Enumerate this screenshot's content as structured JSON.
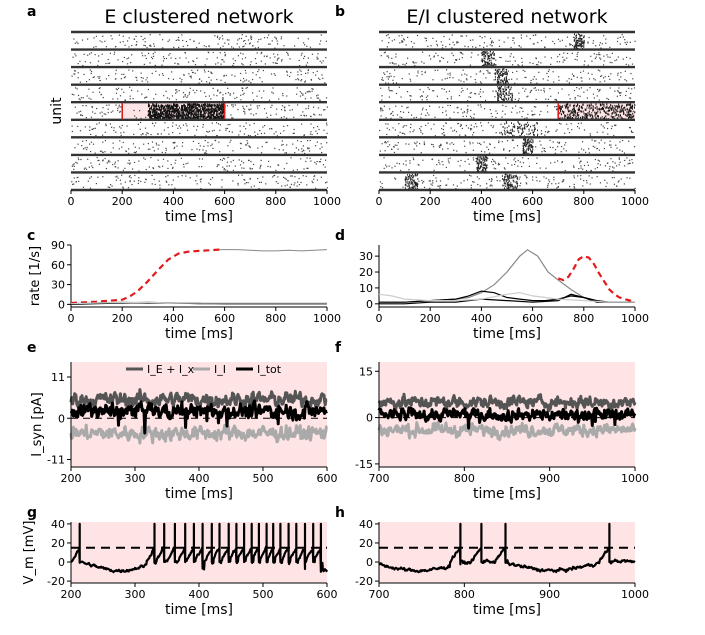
{
  "chart_data": [
    {
      "panel": "a",
      "type": "scatter",
      "title": "E clustered network",
      "xlabel": "time [ms]",
      "ylabel": "unit",
      "xlim": [
        0,
        1000
      ],
      "xticks": [
        0,
        200,
        400,
        600,
        800,
        1000
      ],
      "clusters": 9,
      "highlight_cluster": 5,
      "stim_window_ms": [
        200,
        600
      ],
      "red_markers_ms": [
        200,
        600
      ]
    },
    {
      "panel": "b",
      "type": "scatter",
      "title": "E/I clustered network",
      "xlabel": "time [ms]",
      "xlim": [
        0,
        1000
      ],
      "xticks": [
        0,
        200,
        400,
        600,
        800,
        1000
      ],
      "clusters": 9,
      "highlight_cluster": 5,
      "stim_window_ms": [
        700,
        1000
      ],
      "red_markers_ms": [
        700
      ]
    },
    {
      "panel": "c",
      "type": "line",
      "xlabel": "time [ms]",
      "ylabel": "rate [1/s]",
      "xlim": [
        0,
        1000
      ],
      "ylim": [
        -4,
        90
      ],
      "xticks": [
        0,
        200,
        400,
        600,
        800,
        1000
      ],
      "yticks": [
        0,
        30,
        60,
        90
      ],
      "series": [
        {
          "style": "dashed-red",
          "x": [
            0,
            100,
            200,
            230,
            260,
            300,
            340,
            380,
            420,
            460,
            500,
            540,
            580
          ],
          "y": [
            2,
            4,
            7,
            12,
            20,
            35,
            52,
            68,
            77,
            80,
            81,
            82,
            83
          ]
        },
        {
          "style": "grey-thin",
          "x": [
            580,
            650,
            700,
            750,
            800,
            850,
            900,
            950,
            1000
          ],
          "y": [
            83,
            83,
            82,
            81,
            81,
            82,
            81,
            82,
            83
          ]
        },
        {
          "style": "black",
          "x": [
            0,
            100,
            200,
            300,
            400,
            500,
            600,
            700,
            800,
            900,
            1000
          ],
          "y": [
            1,
            2,
            3,
            2,
            2,
            1,
            1,
            1,
            1,
            1,
            1
          ]
        },
        {
          "style": "black",
          "x": [
            0,
            100,
            200,
            300,
            400,
            500,
            600,
            700,
            800,
            900,
            1000
          ],
          "y": [
            0,
            1,
            2,
            3,
            2,
            2,
            1,
            1,
            1,
            1,
            1
          ]
        },
        {
          "style": "grey-light",
          "x": [
            0,
            100,
            200,
            300,
            400,
            500,
            600,
            700,
            800,
            900,
            1000
          ],
          "y": [
            1,
            2,
            3,
            3,
            2,
            2,
            2,
            2,
            2,
            2,
            2
          ]
        }
      ]
    },
    {
      "panel": "d",
      "type": "line",
      "xlabel": "time [ms]",
      "xlim": [
        0,
        1000
      ],
      "ylim": [
        -2,
        37
      ],
      "xticks": [
        0,
        200,
        400,
        600,
        800,
        1000
      ],
      "yticks": [
        0,
        10,
        20,
        30
      ],
      "series": [
        {
          "style": "grey",
          "x": [
            0,
            100,
            200,
            300,
            350,
            400,
            450,
            500,
            550,
            580,
            620,
            660,
            700,
            750,
            800,
            850,
            900,
            950,
            1000
          ],
          "y": [
            1,
            1,
            2,
            3,
            4,
            7,
            12,
            20,
            30,
            34,
            30,
            20,
            15,
            9,
            4,
            2,
            1,
            1,
            1
          ]
        },
        {
          "style": "dashed-red",
          "x": [
            700,
            720,
            740,
            760,
            780,
            800,
            820,
            840,
            860,
            880,
            900,
            920,
            940,
            960,
            980,
            1000
          ],
          "y": [
            16,
            15,
            17,
            22,
            28,
            30,
            29,
            25,
            19,
            14,
            9,
            6,
            4,
            3,
            2,
            2
          ]
        },
        {
          "style": "black",
          "x": [
            0,
            100,
            200,
            300,
            350,
            400,
            450,
            500,
            550,
            600,
            650,
            700,
            750,
            800,
            850,
            900,
            950,
            1000
          ],
          "y": [
            1,
            1,
            2,
            3,
            5,
            8,
            7,
            4,
            3,
            2,
            2,
            3,
            5,
            4,
            2,
            1,
            1,
            1
          ]
        },
        {
          "style": "black",
          "x": [
            0,
            100,
            200,
            300,
            400,
            500,
            600,
            700,
            750,
            800,
            850,
            900,
            1000
          ],
          "y": [
            0,
            0,
            1,
            1,
            3,
            2,
            1,
            2,
            6,
            4,
            1,
            1,
            1
          ]
        },
        {
          "style": "grey-light",
          "x": [
            0,
            50,
            100,
            200,
            300,
            400,
            500,
            550,
            600,
            700,
            800,
            900,
            1000
          ],
          "y": [
            6,
            5,
            3,
            2,
            2,
            3,
            6,
            7,
            5,
            3,
            2,
            1,
            1
          ]
        }
      ]
    },
    {
      "panel": "e",
      "type": "line",
      "xlabel": "time [ms]",
      "ylabel": "I_syn [pA]",
      "xlim": [
        200,
        600
      ],
      "ylim": [
        -13,
        15
      ],
      "xticks": [
        200,
        300,
        400,
        500,
        600
      ],
      "yticks": [
        -11,
        0,
        11
      ],
      "stim_window_ms": [
        200,
        600
      ],
      "series": [
        {
          "name": "I_E + I_x",
          "color": "#555555",
          "mean": 5,
          "amp": 1.6
        },
        {
          "name": "I_I",
          "color": "#aaaaaa",
          "mean": -4,
          "amp": 1.6
        },
        {
          "name": "I_tot",
          "color": "#000000",
          "mean": 2,
          "amp": 1.6
        }
      ]
    },
    {
      "panel": "f",
      "type": "line",
      "xlabel": "time [ms]",
      "xlim": [
        700,
        1000
      ],
      "ylim": [
        -16,
        18
      ],
      "xticks": [
        700,
        800,
        900,
        1000
      ],
      "yticks": [
        -15,
        0,
        15
      ],
      "stim_window_ms": [
        700,
        1000
      ],
      "series": [
        {
          "name": "I_E + I_x",
          "color": "#555555",
          "mean": 5,
          "amp": 1.6
        },
        {
          "name": "I_I",
          "color": "#aaaaaa",
          "mean": -4,
          "amp": 1.6
        },
        {
          "name": "I_tot",
          "color": "#000000",
          "mean": 1,
          "amp": 1.6
        }
      ]
    },
    {
      "panel": "g",
      "type": "line",
      "xlabel": "time [ms]",
      "ylabel": "V_m [mV]",
      "xlim": [
        200,
        600
      ],
      "ylim": [
        -22,
        42
      ],
      "xticks": [
        200,
        300,
        400,
        500,
        600
      ],
      "yticks": [
        -20,
        0,
        20,
        40
      ],
      "threshold_mV": 15,
      "spike_times_ms": [
        213,
        330,
        345,
        362,
        378,
        392,
        405,
        420,
        432,
        446,
        458,
        470,
        482,
        493,
        505,
        516,
        527,
        540,
        552,
        565,
        578,
        590
      ],
      "stim_window_ms": [
        200,
        600
      ]
    },
    {
      "panel": "h",
      "type": "line",
      "xlabel": "time [ms]",
      "xlim": [
        700,
        1000
      ],
      "ylim": [
        -22,
        42
      ],
      "xticks": [
        700,
        800,
        900,
        1000
      ],
      "yticks": [
        -20,
        0,
        20,
        40
      ],
      "threshold_mV": 15,
      "spike_times_ms": [
        795,
        820,
        848,
        970
      ],
      "stim_window_ms": [
        700,
        1000
      ]
    }
  ],
  "panel_labels": {
    "a": "a",
    "b": "b",
    "c": "c",
    "d": "d",
    "e": "e",
    "f": "f",
    "g": "g",
    "h": "h"
  },
  "legend_labels": [
    "I_E + I_x",
    "I_I",
    "I_tot"
  ],
  "colors": {
    "stim_fill": "#ffe4e6",
    "red": "#e31a1c",
    "grey": "#888888",
    "light_grey": "#cccccc"
  }
}
